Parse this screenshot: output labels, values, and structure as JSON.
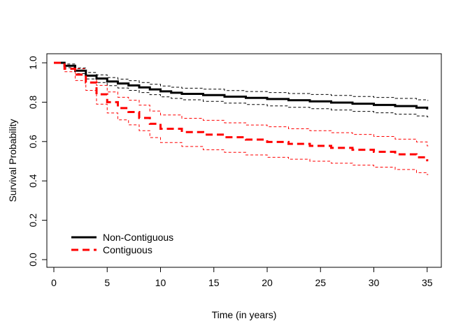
{
  "chart_data": {
    "type": "line",
    "title": "",
    "xlabel": "Time (in years)",
    "ylabel": "Survival Probability",
    "xlim": [
      0,
      36
    ],
    "ylim": [
      0,
      1
    ],
    "x_ticks": [
      0,
      5,
      10,
      15,
      20,
      25,
      30,
      35
    ],
    "y_ticks": [
      0.0,
      0.2,
      0.4,
      0.6,
      0.8,
      1.0
    ],
    "y_tick_labels": [
      "0.0",
      "0.2",
      "0.4",
      "0.6",
      "0.8",
      "1.0"
    ],
    "step": true,
    "legend_position": "bottom-left",
    "series": [
      {
        "name": "Non-Contiguous",
        "color": "#000000",
        "line_style": "solid",
        "x": [
          0,
          1,
          2,
          3,
          4,
          5,
          6,
          7,
          8,
          9,
          10,
          11,
          12,
          14,
          16,
          18,
          20,
          22,
          24,
          26,
          28,
          30,
          32,
          34,
          35
        ],
        "y": [
          1.0,
          0.985,
          0.96,
          0.935,
          0.92,
          0.905,
          0.895,
          0.885,
          0.875,
          0.865,
          0.855,
          0.848,
          0.842,
          0.836,
          0.828,
          0.822,
          0.816,
          0.81,
          0.804,
          0.798,
          0.792,
          0.786,
          0.78,
          0.772,
          0.768
        ],
        "lower": [
          1.0,
          0.975,
          0.945,
          0.918,
          0.9,
          0.884,
          0.872,
          0.86,
          0.849,
          0.838,
          0.827,
          0.819,
          0.812,
          0.804,
          0.795,
          0.788,
          0.781,
          0.774,
          0.767,
          0.76,
          0.753,
          0.746,
          0.739,
          0.73,
          0.725
        ],
        "upper": [
          1.0,
          0.994,
          0.974,
          0.951,
          0.939,
          0.925,
          0.917,
          0.909,
          0.9,
          0.891,
          0.882,
          0.876,
          0.871,
          0.866,
          0.859,
          0.854,
          0.849,
          0.844,
          0.839,
          0.834,
          0.829,
          0.824,
          0.819,
          0.812,
          0.809
        ]
      },
      {
        "name": "Contiguous",
        "color": "#ff0000",
        "line_style": "dashed",
        "x": [
          0,
          1,
          2,
          3,
          4,
          5,
          6,
          7,
          8,
          9,
          10,
          12,
          14,
          16,
          18,
          20,
          22,
          24,
          26,
          28,
          30,
          32,
          34,
          35
        ],
        "y": [
          1.0,
          0.97,
          0.94,
          0.9,
          0.84,
          0.8,
          0.77,
          0.75,
          0.72,
          0.69,
          0.665,
          0.648,
          0.635,
          0.622,
          0.61,
          0.598,
          0.588,
          0.578,
          0.568,
          0.558,
          0.548,
          0.535,
          0.52,
          0.505
        ],
        "lower": [
          1.0,
          0.955,
          0.91,
          0.86,
          0.79,
          0.745,
          0.71,
          0.685,
          0.655,
          0.62,
          0.595,
          0.575,
          0.558,
          0.545,
          0.532,
          0.52,
          0.51,
          0.5,
          0.49,
          0.48,
          0.47,
          0.458,
          0.442,
          0.432
        ],
        "upper": [
          1.0,
          0.985,
          0.97,
          0.935,
          0.885,
          0.852,
          0.825,
          0.81,
          0.785,
          0.755,
          0.735,
          0.718,
          0.708,
          0.695,
          0.684,
          0.675,
          0.665,
          0.655,
          0.645,
          0.636,
          0.626,
          0.612,
          0.598,
          0.578
        ]
      }
    ]
  }
}
